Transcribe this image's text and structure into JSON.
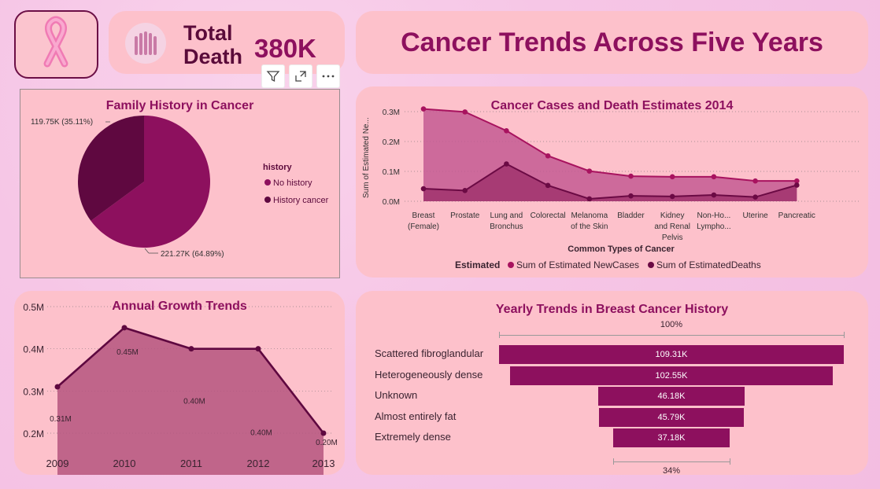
{
  "kpi": {
    "title_line1": "Total",
    "title_line2": "Death",
    "value": "380K"
  },
  "main_title": "Cancer Trends Across Five Years",
  "colors": {
    "card": "#fdc1cb",
    "primary": "#8d105e",
    "dark": "#5f0840",
    "title": "#8d105e"
  },
  "family_history": {
    "title": "Family History in Cancer",
    "legend_title": "history",
    "slices": [
      {
        "label": "No history",
        "value": 221.27,
        "display": "221.27K (64.89%)",
        "color": "#8d105e"
      },
      {
        "label": "History cancer",
        "value": 119.75,
        "display": "119.75K (35.11%)",
        "color": "#5f0840"
      }
    ]
  },
  "chart_data": [
    {
      "type": "area",
      "title": "Cancer Cases and Death Estimates 2014",
      "xlabel": "Common Types of Cancer",
      "ylabel": "Sum of Estimated Ne...",
      "legend_title": "Estimated",
      "categories": [
        "Breast (Female)",
        "Prostate",
        "Lung and Bronchus",
        "Colorectal",
        "Melanoma of the Skin",
        "Bladder",
        "Kidney and Renal Pelvis",
        "Non-Ho... Lympho...",
        "Uterine",
        "Pancreatic"
      ],
      "category_lines": [
        [
          "Breast",
          "(Female)"
        ],
        [
          "Prostate"
        ],
        [
          "Lung and",
          "Bronchus"
        ],
        [
          "Colorectal"
        ],
        [
          "Melanoma",
          "of the Skin"
        ],
        [
          "Bladder"
        ],
        [
          "Kidney",
          "and Renal",
          "Pelvis"
        ],
        [
          "Non-Ho...",
          "Lympho..."
        ],
        [
          "Uterine"
        ],
        [
          "Pancreatic"
        ]
      ],
      "yticks": [
        "0.0M",
        "0.1M",
        "0.2M",
        "0.3M"
      ],
      "ylim": [
        0,
        0.3
      ],
      "series": [
        {
          "name": "Sum of Estimated NewCases",
          "values": [
            0.309,
            0.299,
            0.236,
            0.152,
            0.101,
            0.084,
            0.082,
            0.082,
            0.068,
            0.068
          ],
          "color": "#a8135f"
        },
        {
          "name": "Sum of EstimatedDeaths",
          "values": [
            0.042,
            0.036,
            0.125,
            0.053,
            0.008,
            0.018,
            0.016,
            0.021,
            0.014,
            0.054
          ],
          "color": "#6b0a44"
        }
      ]
    },
    {
      "type": "area",
      "title": "Annual Growth Trends",
      "categories": [
        "2009",
        "2010",
        "2011",
        "2012",
        "2013"
      ],
      "values": [
        0.31,
        0.45,
        0.4,
        0.4,
        0.2
      ],
      "data_labels": [
        "0.31M",
        "0.45M",
        "0.40M",
        "0.40M",
        "0.20M"
      ],
      "yticks": [
        "0.2M",
        "0.3M",
        "0.4M",
        "0.5M"
      ],
      "ylim": [
        0.2,
        0.5
      ]
    },
    {
      "type": "bar",
      "title": "Yearly Trends in Breast Cancer History",
      "categories": [
        "Scattered fibroglandular",
        "Heterogeneously dense",
        "Unknown",
        "Almost entirely fat",
        "Extremely dense"
      ],
      "values": [
        109.31,
        102.55,
        46.18,
        45.79,
        37.18
      ],
      "data_labels": [
        "109.31K",
        "102.55K",
        "46.18K",
        "45.79K",
        "37.18K"
      ],
      "top_pct": "100%",
      "bottom_pct": "34%"
    }
  ]
}
